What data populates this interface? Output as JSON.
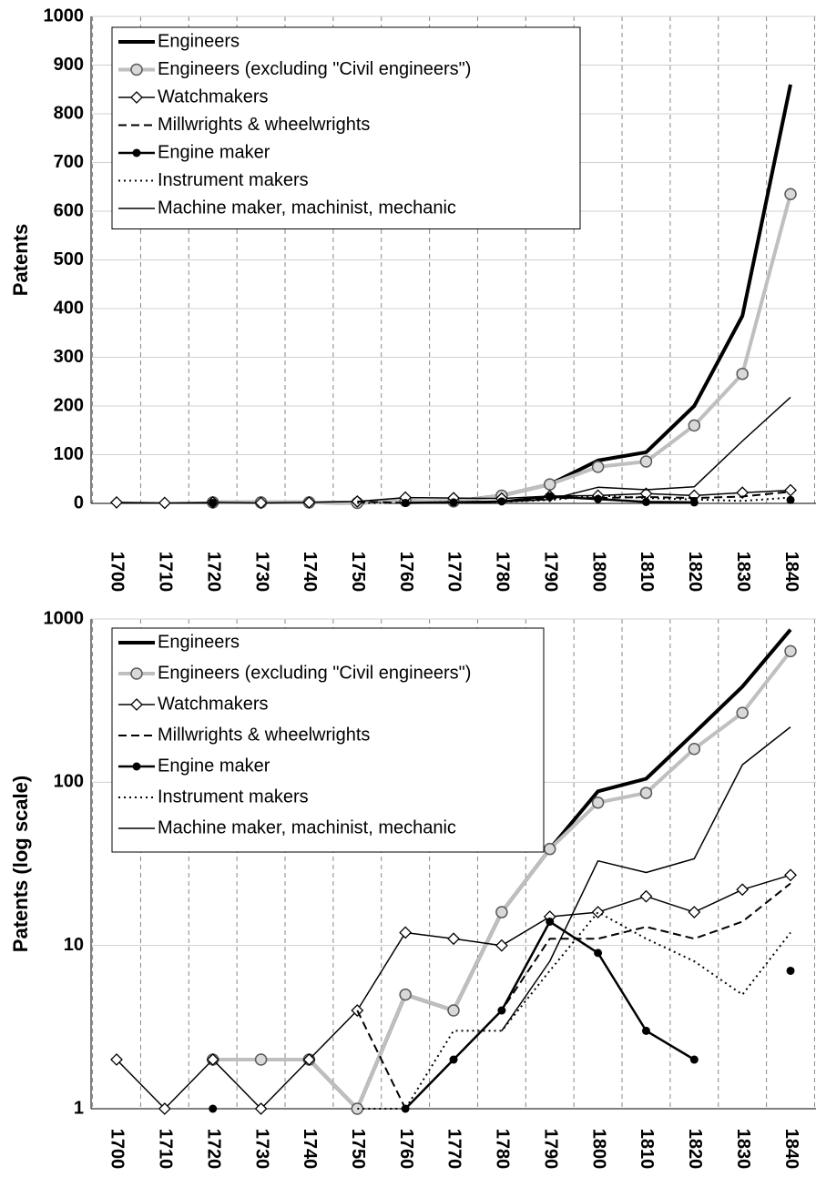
{
  "chart_data": [
    {
      "type": "line",
      "y_label": "Patents",
      "log_scale": false,
      "grid": true,
      "legend": "upper left",
      "categories": [
        "1700",
        "1710",
        "1720",
        "1730",
        "1740",
        "1750",
        "1760",
        "1770",
        "1780",
        "1790",
        "1800",
        "1810",
        "1820",
        "1830",
        "1840"
      ],
      "ylim": [
        0,
        1000
      ],
      "yticks": [
        0,
        100,
        200,
        300,
        400,
        500,
        600,
        700,
        800,
        900,
        1000
      ],
      "series": [
        {
          "name": "Engineers",
          "color": "#000000",
          "width": 4,
          "dash": "none",
          "marker": "none",
          "values": [
            null,
            null,
            2,
            2,
            2,
            1,
            5,
            4,
            16,
            39,
            88,
            105,
            200,
            385,
            860
          ]
        },
        {
          "name": "Engineers (excluding \"Civil engineers\")",
          "color": "#bfbfbf",
          "width": 4,
          "dash": "none",
          "marker": "circle",
          "values": [
            null,
            null,
            2,
            2,
            2,
            1,
            5,
            4,
            16,
            39,
            75,
            86,
            160,
            266,
            635
          ]
        },
        {
          "name": "Watchmakers",
          "color": "#000000",
          "width": 1.5,
          "dash": "none",
          "marker": "diamond",
          "values": [
            2,
            1,
            2,
            1,
            2,
            4,
            12,
            11,
            10,
            15,
            16,
            20,
            16,
            22,
            27
          ]
        },
        {
          "name": "Millwrights & wheelwrights",
          "color": "#000000",
          "width": 2,
          "dash": "dashed",
          "marker": "none",
          "values": [
            null,
            null,
            null,
            null,
            null,
            4,
            1,
            2,
            4,
            11,
            11,
            13,
            11,
            14,
            24
          ]
        },
        {
          "name": "Engine maker",
          "color": "#000000",
          "width": 2.5,
          "dash": "none",
          "marker": "dot",
          "values": [
            null,
            null,
            1,
            null,
            null,
            null,
            1,
            2,
            4,
            14,
            9,
            3,
            2,
            null,
            7
          ]
        },
        {
          "name": "Instrument makers",
          "color": "#000000",
          "width": 2,
          "dash": "dotted",
          "marker": "none",
          "values": [
            null,
            null,
            null,
            null,
            null,
            1,
            1,
            3,
            3,
            7,
            16,
            11,
            8,
            5,
            12
          ]
        },
        {
          "name": "Machine maker, machinist, mechanic",
          "color": "#000000",
          "width": 1.5,
          "dash": "none",
          "marker": "none",
          "values": [
            null,
            null,
            null,
            null,
            null,
            null,
            null,
            null,
            3,
            8,
            33,
            28,
            34,
            128,
            218
          ]
        }
      ]
    },
    {
      "type": "line",
      "y_label": "Patents (log scale)",
      "log_scale": true,
      "grid": true,
      "legend": "upper left",
      "categories": [
        "1700",
        "1710",
        "1720",
        "1730",
        "1740",
        "1750",
        "1760",
        "1770",
        "1780",
        "1790",
        "1800",
        "1810",
        "1820",
        "1830",
        "1840"
      ],
      "ylim": [
        1,
        1000
      ],
      "yticks": [
        1,
        10,
        100,
        1000
      ],
      "series": [
        {
          "name": "Engineers",
          "color": "#000000",
          "width": 4,
          "dash": "none",
          "marker": "none",
          "values": [
            null,
            null,
            2,
            2,
            2,
            1,
            5,
            4,
            16,
            39,
            88,
            105,
            200,
            385,
            860
          ]
        },
        {
          "name": "Engineers (excluding \"Civil engineers\")",
          "color": "#bfbfbf",
          "width": 4,
          "dash": "none",
          "marker": "circle",
          "values": [
            null,
            null,
            2,
            2,
            2,
            1,
            5,
            4,
            16,
            39,
            75,
            86,
            160,
            266,
            635
          ]
        },
        {
          "name": "Watchmakers",
          "color": "#000000",
          "width": 1.5,
          "dash": "none",
          "marker": "diamond",
          "values": [
            2,
            1,
            2,
            1,
            2,
            4,
            12,
            11,
            10,
            15,
            16,
            20,
            16,
            22,
            27
          ]
        },
        {
          "name": "Millwrights & wheelwrights",
          "color": "#000000",
          "width": 2,
          "dash": "dashed",
          "marker": "none",
          "values": [
            null,
            null,
            null,
            null,
            null,
            4,
            1,
            2,
            4,
            11,
            11,
            13,
            11,
            14,
            24
          ]
        },
        {
          "name": "Engine maker",
          "color": "#000000",
          "width": 2.5,
          "dash": "none",
          "marker": "dot",
          "values": [
            null,
            null,
            1,
            null,
            null,
            null,
            1,
            2,
            4,
            14,
            9,
            3,
            2,
            null,
            7
          ]
        },
        {
          "name": "Instrument makers",
          "color": "#000000",
          "width": 2,
          "dash": "dotted",
          "marker": "none",
          "values": [
            null,
            null,
            null,
            null,
            null,
            1,
            1,
            3,
            3,
            7,
            16,
            11,
            8,
            5,
            12
          ]
        },
        {
          "name": "Machine maker, machinist, mechanic",
          "color": "#000000",
          "width": 1.5,
          "dash": "none",
          "marker": "none",
          "values": [
            null,
            null,
            null,
            null,
            null,
            null,
            null,
            null,
            3,
            8,
            33,
            28,
            34,
            128,
            218
          ]
        }
      ]
    }
  ]
}
